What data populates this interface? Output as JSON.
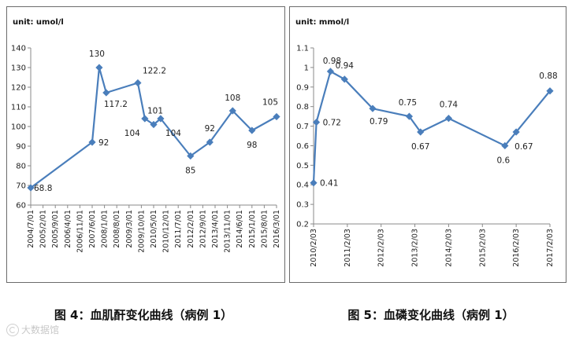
{
  "chart_data": [
    {
      "type": "line",
      "unit_label": "unit: umol/l",
      "categories": [
        "2004/7/01",
        "2005/2/01",
        "2005/9/01",
        "2006/4/01",
        "2006/11/01",
        "2007/6/01",
        "2008/1/01",
        "2008/8/01",
        "2009/3/01",
        "2009/10/01",
        "2010/5/01",
        "2010/12/01",
        "2011/7/01",
        "2012/2/01",
        "2012/9/01",
        "2013/4/01",
        "2013/11/01",
        "2014/6/01",
        "2015/1/01",
        "2015/8/01",
        "2016/3/01"
      ],
      "points": [
        {
          "x": "2004/7/01",
          "y": 68.8,
          "label": "68.8"
        },
        {
          "x": "2007/6/01",
          "y": 92,
          "label": "92"
        },
        {
          "x": "2007/10/01",
          "y": 130,
          "label": "130"
        },
        {
          "x": "2008/2/01",
          "y": 117.2,
          "label": "117.2"
        },
        {
          "x": "2009/8/01",
          "y": 122.2,
          "label": "122.2"
        },
        {
          "x": "2009/12/01",
          "y": 104,
          "label": "104"
        },
        {
          "x": "2010/5/01",
          "y": 101,
          "label": "101"
        },
        {
          "x": "2010/9/01",
          "y": 104,
          "label": "104"
        },
        {
          "x": "2012/2/01",
          "y": 85,
          "label": "85"
        },
        {
          "x": "2013/1/01",
          "y": 92,
          "label": "92"
        },
        {
          "x": "2014/2/01",
          "y": 108,
          "label": "108"
        },
        {
          "x": "2015/1/01",
          "y": 98,
          "label": "98"
        },
        {
          "x": "2016/3/01",
          "y": 105,
          "label": "105"
        }
      ],
      "ylim": [
        60,
        140
      ],
      "yticks": [
        60,
        70,
        80,
        90,
        100,
        110,
        120,
        130,
        140
      ],
      "grid": false,
      "color": "#4a7ebb"
    },
    {
      "type": "line",
      "unit_label": "unit: mmol/l",
      "categories": [
        "2010/2/03",
        "2011/2/03",
        "2012/2/03",
        "2013/2/03",
        "2014/2/03",
        "2015/2/03",
        "2016/2/03",
        "2017/2/03"
      ],
      "points": [
        {
          "x": "2010/2/03",
          "y": 0.41,
          "label": "0.41"
        },
        {
          "x": "2010/3/03",
          "y": 0.72,
          "label": "0.72"
        },
        {
          "x": "2010/8/03",
          "y": 0.98,
          "label": "0.98"
        },
        {
          "x": "2011/1/03",
          "y": 0.94,
          "label": "0.94"
        },
        {
          "x": "2011/11/03",
          "y": 0.79,
          "label": "0.79"
        },
        {
          "x": "2012/12/03",
          "y": 0.75,
          "label": "0.75"
        },
        {
          "x": "2013/4/03",
          "y": 0.67,
          "label": "0.67"
        },
        {
          "x": "2014/2/03",
          "y": 0.74,
          "label": "0.74"
        },
        {
          "x": "2015/10/03",
          "y": 0.6,
          "label": "0.6"
        },
        {
          "x": "2016/2/03",
          "y": 0.67,
          "label": "0.67"
        },
        {
          "x": "2017/2/03",
          "y": 0.88,
          "label": "0.88"
        }
      ],
      "ylim": [
        0.2,
        1.1
      ],
      "yticks": [
        0.2,
        0.3,
        0.4,
        0.5,
        0.6,
        0.7,
        0.8,
        0.9,
        1,
        1.1
      ],
      "grid": false,
      "color": "#4a7ebb"
    }
  ],
  "captions": {
    "left": "图 4：血肌酐变化曲线（病例 1）",
    "right": "图 5：血磷变化曲线（病例 1）"
  },
  "watermark": "大数据馆"
}
